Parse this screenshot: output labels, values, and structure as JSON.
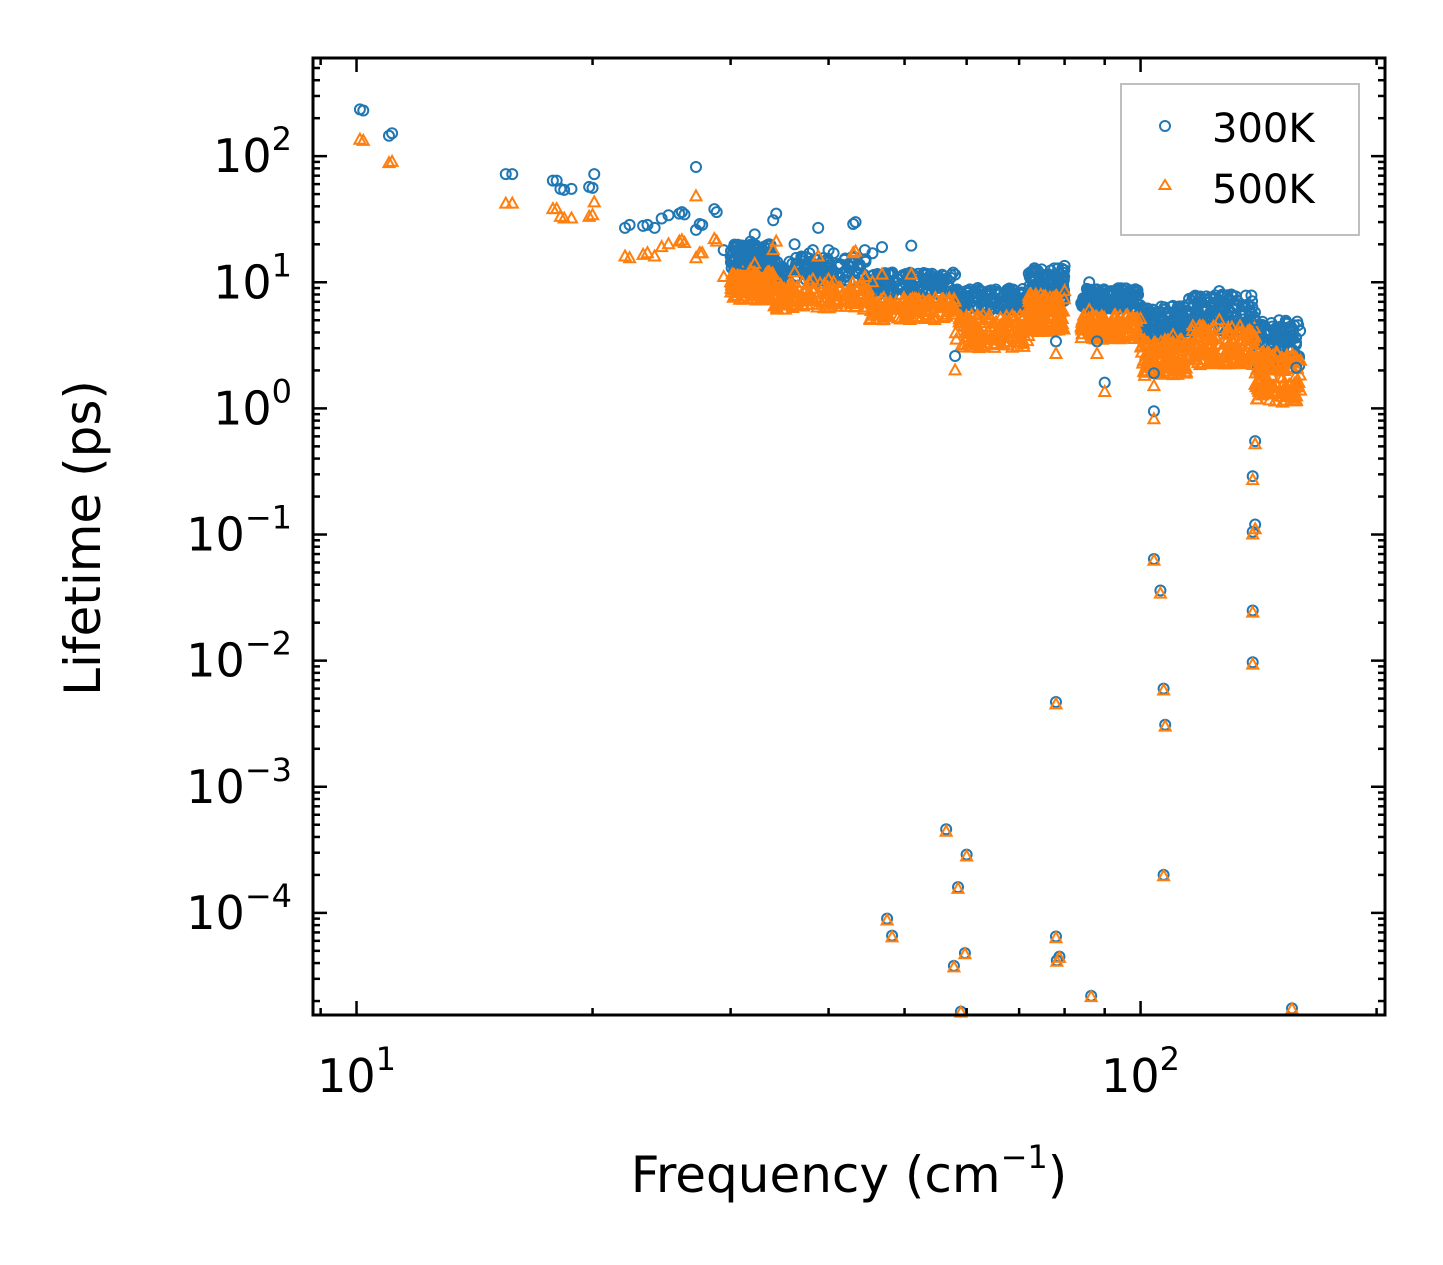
{
  "chart_data": {
    "type": "scatter",
    "title": "",
    "xlabel": "Frequency (cm",
    "xlabel_sup": "−1",
    "xlabel_close": ")",
    "ylabel": "Lifetime (ps)",
    "xscale": "log",
    "yscale": "log",
    "xlim": [
      8.8,
      205
    ],
    "ylim": [
      1.55e-05,
      600
    ],
    "legend_position": "top-right",
    "x_ticks": [
      {
        "base": "10",
        "exp": "1"
      },
      {
        "base": "10",
        "exp": "2"
      }
    ],
    "y_ticks": [
      {
        "base": "10",
        "exp": "2"
      },
      {
        "base": "10",
        "exp": "1"
      },
      {
        "base": "10",
        "exp": "0"
      },
      {
        "base": "10",
        "exp": "−1"
      },
      {
        "base": "10",
        "exp": "−2"
      },
      {
        "base": "10",
        "exp": "−3"
      },
      {
        "base": "10",
        "exp": "−4"
      }
    ],
    "series": [
      {
        "name": "300K",
        "marker": "circle",
        "color": "#1f77b4",
        "points": [
          [
            10.1,
            235
          ],
          [
            10.2,
            230
          ],
          [
            11.0,
            145
          ],
          [
            11.1,
            152
          ],
          [
            15.5,
            72
          ],
          [
            15.8,
            72
          ],
          [
            17.8,
            64
          ],
          [
            18.0,
            64
          ],
          [
            18.2,
            55
          ],
          [
            18.4,
            54
          ],
          [
            18.8,
            55
          ],
          [
            19.8,
            57
          ],
          [
            20.1,
            72
          ],
          [
            20.0,
            56
          ],
          [
            22.0,
            27
          ],
          [
            22.3,
            28.5
          ],
          [
            23.2,
            28
          ],
          [
            23.5,
            28.5
          ],
          [
            24.0,
            27
          ],
          [
            24.5,
            32
          ],
          [
            25.0,
            34
          ],
          [
            25.8,
            35
          ],
          [
            26.0,
            36
          ],
          [
            26.2,
            34.5
          ],
          [
            27.1,
            26
          ],
          [
            27.4,
            29
          ],
          [
            27.6,
            28.5
          ],
          [
            27.1,
            82
          ],
          [
            28.6,
            38
          ],
          [
            28.8,
            36
          ],
          [
            29.4,
            18
          ],
          [
            30.0,
            16
          ],
          [
            30.5,
            17
          ],
          [
            31.2,
            14
          ],
          [
            31.6,
            18
          ],
          [
            31.8,
            21
          ],
          [
            32.2,
            24
          ],
          [
            33.0,
            17
          ],
          [
            33.6,
            20
          ],
          [
            34.0,
            31
          ],
          [
            34.3,
            35
          ],
          [
            36.2,
            20
          ],
          [
            37.8,
            17
          ],
          [
            38.2,
            18
          ],
          [
            38.8,
            27
          ],
          [
            40.0,
            18
          ],
          [
            40.6,
            17
          ],
          [
            43.0,
            29
          ],
          [
            43.3,
            30
          ],
          [
            44.5,
            18
          ],
          [
            45.5,
            17
          ],
          [
            46.8,
            19
          ],
          [
            51.0,
            19.5
          ],
          [
            58.0,
            2.6
          ],
          [
            58.0,
            11.5
          ],
          [
            60.0,
            8.5
          ],
          [
            62.0,
            9
          ],
          [
            64.0,
            8.5
          ],
          [
            67.0,
            8
          ],
          [
            78.0,
            3.4
          ],
          [
            88.0,
            3.4
          ],
          [
            90.0,
            1.6
          ],
          [
            104.0,
            1.9
          ],
          [
            104.0,
            0.95
          ],
          [
            80.0,
            13.5
          ],
          [
            86.0,
            10
          ],
          [
            90.0,
            8.5
          ],
          [
            96.0,
            7.5
          ],
          [
            110.0,
            6.5
          ],
          [
            119.0,
            7.5
          ],
          [
            126.0,
            8.5
          ],
          [
            135.0,
            6.5
          ],
          [
            140.0,
            5
          ],
          [
            148.0,
            3.5
          ],
          [
            158.0,
            2.1
          ],
          [
            140.0,
            0.55
          ],
          [
            139.0,
            0.29
          ],
          [
            140.0,
            0.12
          ],
          [
            139.0,
            0.105
          ],
          [
            104.0,
            0.064
          ],
          [
            106.0,
            0.036
          ],
          [
            139.0,
            0.025
          ],
          [
            139.0,
            0.0097
          ],
          [
            107.0,
            0.006
          ],
          [
            107.5,
            0.0031
          ],
          [
            78.0,
            0.0047
          ],
          [
            56.5,
            0.00046
          ],
          [
            58.5,
            0.00016
          ],
          [
            60.0,
            0.00029
          ],
          [
            47.5,
            9e-05
          ],
          [
            48.2,
            6.6e-05
          ],
          [
            57.8,
            3.8e-05
          ],
          [
            59.7,
            4.8e-05
          ],
          [
            78.0,
            6.5e-05
          ],
          [
            78.2,
            4.2e-05
          ],
          [
            78.8,
            4.5e-05
          ],
          [
            86.5,
            2.2e-05
          ],
          [
            59.0,
            1.65e-05
          ],
          [
            156.0,
            1.75e-05
          ],
          [
            107.0,
            0.0002
          ]
        ],
        "bands": [
          {
            "x": [
              30,
              34
            ],
            "y_low": 12,
            "y_high": 20
          },
          {
            "x": [
              34,
              45
            ],
            "y_low": 10,
            "y_high": 16
          },
          {
            "x": [
              45,
              58
            ],
            "y_low": 8,
            "y_high": 12
          },
          {
            "x": [
              58,
              72
            ],
            "y_low": 6,
            "y_high": 9
          },
          {
            "x": [
              72,
              80
            ],
            "y_low": 7,
            "y_high": 13
          },
          {
            "x": [
              84,
              100
            ],
            "y_low": 6,
            "y_high": 9
          },
          {
            "x": [
              100,
              115
            ],
            "y_low": 3.5,
            "y_high": 6.5
          },
          {
            "x": [
              115,
              140
            ],
            "y_low": 4,
            "y_high": 8
          },
          {
            "x": [
              140,
              160
            ],
            "y_low": 2,
            "y_high": 5
          }
        ]
      },
      {
        "name": "500K",
        "marker": "triangle",
        "color": "#ff7f0e",
        "points": [
          [
            10.1,
            135
          ],
          [
            10.2,
            132
          ],
          [
            11.0,
            88
          ],
          [
            11.1,
            90
          ],
          [
            15.5,
            42
          ],
          [
            15.8,
            42
          ],
          [
            17.8,
            38
          ],
          [
            18.0,
            38
          ],
          [
            18.2,
            33
          ],
          [
            18.4,
            32
          ],
          [
            18.8,
            32
          ],
          [
            19.8,
            33
          ],
          [
            20.1,
            43
          ],
          [
            20.0,
            34
          ],
          [
            22.0,
            16
          ],
          [
            22.3,
            15.5
          ],
          [
            23.2,
            16.5
          ],
          [
            23.5,
            17
          ],
          [
            24.0,
            16
          ],
          [
            24.5,
            19
          ],
          [
            25.0,
            20
          ],
          [
            25.8,
            21
          ],
          [
            26.0,
            21.5
          ],
          [
            26.2,
            20.5
          ],
          [
            27.1,
            15.5
          ],
          [
            27.4,
            17
          ],
          [
            27.6,
            17
          ],
          [
            27.1,
            48
          ],
          [
            28.6,
            22
          ],
          [
            28.8,
            21
          ],
          [
            29.4,
            11
          ],
          [
            30.0,
            10
          ],
          [
            30.5,
            10.5
          ],
          [
            31.2,
            9
          ],
          [
            31.6,
            11
          ],
          [
            31.8,
            12.5
          ],
          [
            32.2,
            14
          ],
          [
            33.0,
            10.5
          ],
          [
            33.6,
            12
          ],
          [
            34.0,
            18
          ],
          [
            34.3,
            21
          ],
          [
            36.2,
            12
          ],
          [
            37.8,
            10
          ],
          [
            38.2,
            10.5
          ],
          [
            38.8,
            16
          ],
          [
            40.0,
            10.5
          ],
          [
            40.6,
            10
          ],
          [
            43.0,
            17
          ],
          [
            43.3,
            17.5
          ],
          [
            44.5,
            11
          ],
          [
            45.5,
            10
          ],
          [
            46.8,
            11.5
          ],
          [
            51.0,
            11.5
          ],
          [
            58.0,
            2.0
          ],
          [
            58.0,
            7
          ],
          [
            60.0,
            5
          ],
          [
            62.0,
            5.2
          ],
          [
            64.0,
            5
          ],
          [
            67.0,
            4.8
          ],
          [
            78.0,
            2.7
          ],
          [
            88.0,
            2.7
          ],
          [
            90.0,
            1.35
          ],
          [
            104.0,
            1.5
          ],
          [
            104.0,
            0.82
          ],
          [
            80.0,
            8.5
          ],
          [
            86.0,
            6
          ],
          [
            90.0,
            5
          ],
          [
            96.0,
            4.5
          ],
          [
            110.0,
            3.8
          ],
          [
            119.0,
            4.5
          ],
          [
            126.0,
            5
          ],
          [
            135.0,
            3.8
          ],
          [
            140.0,
            3
          ],
          [
            148.0,
            2
          ],
          [
            158.0,
            1.15
          ],
          [
            140.0,
            0.52
          ],
          [
            139.0,
            0.27
          ],
          [
            140.0,
            0.11
          ],
          [
            139.0,
            0.1
          ],
          [
            104.0,
            0.062
          ],
          [
            106.0,
            0.034
          ],
          [
            139.0,
            0.024
          ],
          [
            139.0,
            0.0093
          ],
          [
            107.0,
            0.0058
          ],
          [
            107.5,
            0.003
          ],
          [
            78.0,
            0.0045
          ],
          [
            56.5,
            0.00044
          ],
          [
            58.5,
            0.000155
          ],
          [
            60.0,
            0.00028
          ],
          [
            47.5,
            8.7e-05
          ],
          [
            48.2,
            6.4e-05
          ],
          [
            57.8,
            3.7e-05
          ],
          [
            59.7,
            4.7e-05
          ],
          [
            78.0,
            6.3e-05
          ],
          [
            78.2,
            4.1e-05
          ],
          [
            78.8,
            4.4e-05
          ],
          [
            86.5,
            2.15e-05
          ],
          [
            59.0,
            1.62e-05
          ],
          [
            156.0,
            1.72e-05
          ],
          [
            107.0,
            0.000195
          ]
        ],
        "bands": [
          {
            "x": [
              30,
              34
            ],
            "y_low": 7,
            "y_high": 12
          },
          {
            "x": [
              34,
              45
            ],
            "y_low": 6,
            "y_high": 10
          },
          {
            "x": [
              45,
              58
            ],
            "y_low": 5,
            "y_high": 7.5
          },
          {
            "x": [
              58,
              72
            ],
            "y_low": 3,
            "y_high": 5.5
          },
          {
            "x": [
              72,
              80
            ],
            "y_low": 4,
            "y_high": 8
          },
          {
            "x": [
              84,
              100
            ],
            "y_low": 3.5,
            "y_high": 5.5
          },
          {
            "x": [
              100,
              115
            ],
            "y_low": 1.8,
            "y_high": 3.5
          },
          {
            "x": [
              115,
              140
            ],
            "y_low": 2.2,
            "y_high": 4.5
          },
          {
            "x": [
              140,
              160
            ],
            "y_low": 1.1,
            "y_high": 2.8
          }
        ]
      }
    ]
  }
}
